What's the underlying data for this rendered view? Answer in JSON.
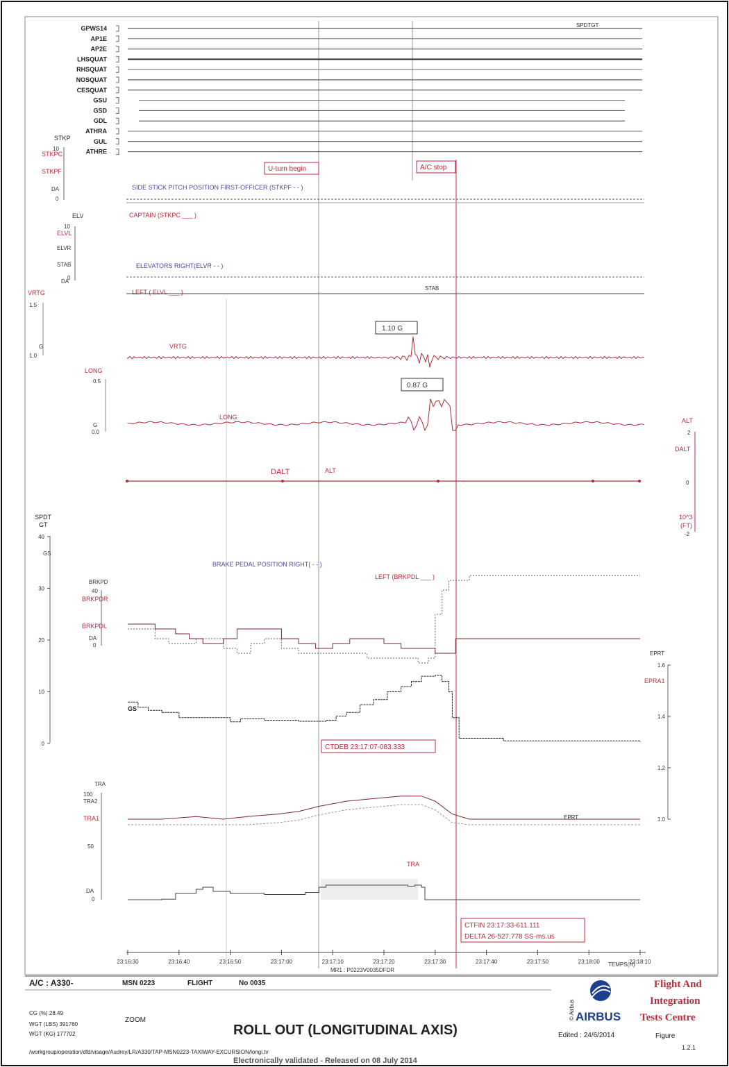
{
  "discretes": [
    {
      "label": "GPWS14",
      "ann": "SPDTGT"
    },
    {
      "label": "AP1E",
      "ann": ""
    },
    {
      "label": "AP2E",
      "ann": ""
    },
    {
      "label": "LHSQUAT",
      "ann": ""
    },
    {
      "label": "RHSQUAT",
      "ann": ""
    },
    {
      "label": "NOSQUAT",
      "ann": ""
    },
    {
      "label": "CESQUAT",
      "ann": ""
    },
    {
      "label": "GSU",
      "ann": ""
    },
    {
      "label": "GSD",
      "ann": ""
    },
    {
      "label": "GDL",
      "ann": ""
    },
    {
      "label": "ATHRA",
      "ann": ""
    },
    {
      "label": "GUL",
      "ann": ""
    },
    {
      "label": "ATHRE",
      "ann": ""
    }
  ],
  "events": {
    "uturn": "U-turn begin",
    "acstop": "A/C stop"
  },
  "panels": {
    "stick": {
      "group": "STKP",
      "axis": [
        "STKPC",
        "STKPF",
        "DA"
      ],
      "top": "10",
      "zero": "0",
      "fo_label": "SIDE STICK PITCH POSITION FIRST-OFFICER (STKPF - - )",
      "capt_label": "CAPTAIN (STKPC ___ )"
    },
    "elev": {
      "group": "ELV",
      "axis": [
        "ELVL",
        "ELVR",
        "STAB",
        "DA"
      ],
      "top": "10",
      "zero": "0",
      "right_label": "ELEVATORS RIGHT(ELVR - - )",
      "left_label": "LEFT ( ELVL ___ )",
      "stab": "STAB"
    },
    "vrtg": {
      "axis": "VRTG",
      "top": "1.5",
      "unit": "G",
      "bottom": "1.0",
      "trace": "VRTG",
      "peak": "1.10 G",
      "trough": "0.87 G"
    },
    "long": {
      "axis": "LONG",
      "top": "0.5",
      "unit": "G",
      "bottom": "0.0",
      "trace": "LONG"
    },
    "alt": {
      "left1": "DALT",
      "left2": "ALT",
      "right_group": "ALT",
      "right_axis": "DALT",
      "top": "2",
      "mid": "0",
      "bottom": "-2",
      "unit1": "10^3",
      "unit2": "(FT)"
    },
    "speed": {
      "group1": "SPDT",
      "group2": "GT",
      "axis": "GS",
      "ticks": [
        "40",
        "30",
        "20",
        "10",
        "0"
      ],
      "brk_group": "BRKPD",
      "brk_axis": [
        "BRKPDR",
        "BRKPDL",
        "DA"
      ],
      "brk_top": "40",
      "brk_zero": "0",
      "right_label": "BRAKE PEDAL POSITION RIGHT( - - )",
      "left_label": "LEFT (BRKPDL ___ )",
      "gs_trace": "GS",
      "ctdeb": "CTDEB  23:17:07-083.333",
      "epr_group": "EPRT",
      "epr_axis": "EPRA1",
      "epr_ticks": [
        "1.6",
        "1.4",
        "1.2",
        "1.0"
      ]
    },
    "tra": {
      "group": "TRA",
      "axis": [
        "TRA2",
        "TRA1",
        "DA"
      ],
      "ticks": [
        "100",
        "50",
        "0"
      ],
      "eprt_trace": "EPRT",
      "tra_trace": "TRA",
      "ctfin": "CTFIN  23:17:33-611.111",
      "delta": "DELTA  26-527.778 SS-ms.us"
    }
  },
  "time_axis": {
    "labels": [
      "23:16:30",
      "23:16:40",
      "23:16:50",
      "23:17:00",
      "23:17:10",
      "23:17:20",
      "23:17:30",
      "23:17:40",
      "23:17:50",
      "23:18:00",
      "23:18:10"
    ],
    "unit": "TEMPS(H)",
    "run": "MR1 : P0223V0035DFDR"
  },
  "footer": {
    "ac": "A/C : A330-",
    "msn": "MSN 0223",
    "flight": "FLIGHT",
    "flight_no": "No 0035",
    "cg": "CG (%)    28.49",
    "wgt_lbs": "WGT (LBS)    391760",
    "wgt_kg": "WGT (KG)    177702",
    "zoom": "ZOOM",
    "title": "ROLL OUT (LONGITUDINAL AXIS)",
    "copyright": "© Airbus",
    "brand": "AIRBUS",
    "edited": "Edited : 24/6/2014",
    "centre1": "Flight And",
    "centre2": "Integration",
    "centre3": "Tests Centre",
    "figure": "Figure",
    "figure_no": "1.2.1",
    "path": "/workgroup/operation/dfd/visage/Audrey/LR/A330/TAP-MSN0223-TAXIWAY-EXCURSION/longi.tv",
    "validated": "Electronically validated - Released on 08 July 2014"
  },
  "chart_data": {
    "type": "line",
    "title": "ROLL OUT (LONGITUDINAL AXIS)",
    "xlabel": "TEMPS(H)",
    "x_start": "23:16:30",
    "x_end": "23:18:10",
    "events": [
      {
        "label": "U-turn begin",
        "time": "23:17:09"
      },
      {
        "label": "A/C stop",
        "time": "23:17:35"
      }
    ],
    "cursors": {
      "CTDEB": "23:17:07-083.333",
      "CTFIN": "23:17:33-611.111",
      "DELTA": "26-527.778 SS-ms.us"
    },
    "series": [
      {
        "name": "GS",
        "ylim": [
          0,
          40
        ],
        "points": [
          [
            0,
            8
          ],
          [
            3,
            7
          ],
          [
            6,
            6.4
          ],
          [
            10,
            6
          ],
          [
            15,
            5
          ],
          [
            20,
            5
          ],
          [
            25,
            5
          ],
          [
            30,
            4.2
          ],
          [
            33,
            4.8
          ],
          [
            40,
            4.5
          ],
          [
            50,
            4.3
          ],
          [
            58,
            4.5
          ],
          [
            61,
            5.3
          ],
          [
            64,
            6
          ],
          [
            68,
            7.5
          ],
          [
            72,
            8.5
          ],
          [
            76,
            10
          ],
          [
            80,
            11
          ],
          [
            83,
            12
          ],
          [
            86,
            13
          ],
          [
            90,
            13.2
          ],
          [
            92,
            12
          ],
          [
            94,
            10
          ],
          [
            95,
            5
          ],
          [
            97,
            1
          ],
          [
            100,
            1
          ],
          [
            110,
            0.5
          ],
          [
            150,
            0.3
          ]
        ]
      },
      {
        "name": "BRKPDL",
        "ylim": [
          0,
          40
        ],
        "points": [
          [
            0,
            23
          ],
          [
            8,
            22
          ],
          [
            14,
            21
          ],
          [
            18,
            20
          ],
          [
            22,
            19
          ],
          [
            28,
            20
          ],
          [
            32,
            22
          ],
          [
            36,
            22
          ],
          [
            40,
            22
          ],
          [
            45,
            20
          ],
          [
            50,
            19
          ],
          [
            55,
            18
          ],
          [
            60,
            19
          ],
          [
            65,
            20
          ],
          [
            70,
            20
          ],
          [
            75,
            19
          ],
          [
            80,
            18
          ],
          [
            85,
            18
          ],
          [
            90,
            17
          ],
          [
            95,
            17
          ],
          [
            96,
            20
          ],
          [
            100,
            20
          ],
          [
            150,
            20
          ]
        ]
      },
      {
        "name": "BRKPDR",
        "ylim": [
          0,
          40
        ],
        "points": [
          [
            0,
            22
          ],
          [
            8,
            20
          ],
          [
            12,
            19
          ],
          [
            16,
            19
          ],
          [
            20,
            20
          ],
          [
            28,
            18
          ],
          [
            32,
            17
          ],
          [
            36,
            19
          ],
          [
            40,
            20
          ],
          [
            45,
            18
          ],
          [
            50,
            17
          ],
          [
            55,
            17
          ],
          [
            60,
            17
          ],
          [
            70,
            16
          ],
          [
            80,
            16
          ],
          [
            85,
            15
          ],
          [
            88,
            16
          ],
          [
            90,
            25
          ],
          [
            92,
            30
          ],
          [
            94,
            32
          ],
          [
            100,
            33
          ],
          [
            150,
            33
          ]
        ]
      },
      {
        "name": "EPRA1",
        "ylim": [
          1.0,
          1.6
        ],
        "points": [
          [
            0,
            1.0
          ],
          [
            10,
            1.0
          ],
          [
            20,
            1.01
          ],
          [
            28,
            1.0
          ],
          [
            35,
            1.01
          ],
          [
            44,
            1.02
          ],
          [
            50,
            1.03
          ],
          [
            56,
            1.05
          ],
          [
            64,
            1.07
          ],
          [
            72,
            1.08
          ],
          [
            80,
            1.09
          ],
          [
            86,
            1.09
          ],
          [
            90,
            1.07
          ],
          [
            95,
            1.02
          ],
          [
            100,
            1.0
          ],
          [
            150,
            1.0
          ]
        ]
      },
      {
        "name": "TRA1",
        "ylim": [
          0,
          100
        ],
        "points": [
          [
            0,
            0
          ],
          [
            10,
            0.5
          ],
          [
            14,
            6
          ],
          [
            20,
            10
          ],
          [
            22,
            12
          ],
          [
            25,
            8
          ],
          [
            30,
            6
          ],
          [
            40,
            5
          ],
          [
            52,
            7
          ],
          [
            56,
            12
          ],
          [
            58,
            14
          ],
          [
            65,
            14
          ],
          [
            70,
            14
          ],
          [
            80,
            14
          ],
          [
            82,
            13
          ],
          [
            84,
            14
          ],
          [
            86,
            12
          ],
          [
            87,
            0
          ],
          [
            150,
            0
          ]
        ]
      },
      {
        "name": "VRTG",
        "ylim": [
          1.0,
          1.5
        ],
        "peak": 1.1,
        "trough": 0.87
      },
      {
        "name": "LONG",
        "ylim": [
          0.0,
          0.5
        ]
      }
    ]
  }
}
